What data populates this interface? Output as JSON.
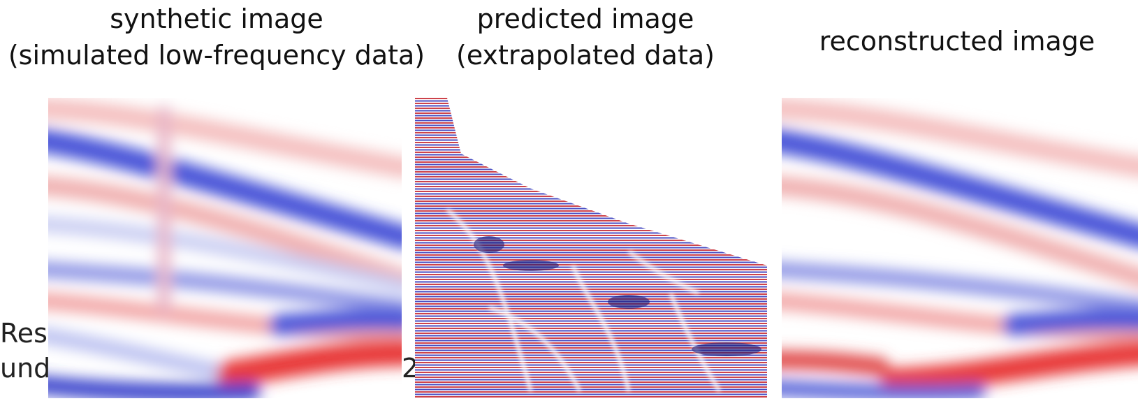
{
  "panels": [
    {
      "title": "synthetic image",
      "subtitle": "(simulated low-frequency data)"
    },
    {
      "title": "predicted image",
      "subtitle": "(extrapolated data)"
    },
    {
      "title": "reconstructed image"
    }
  ],
  "background_text": [
    "Res",
    "und",
    "2"
  ]
}
